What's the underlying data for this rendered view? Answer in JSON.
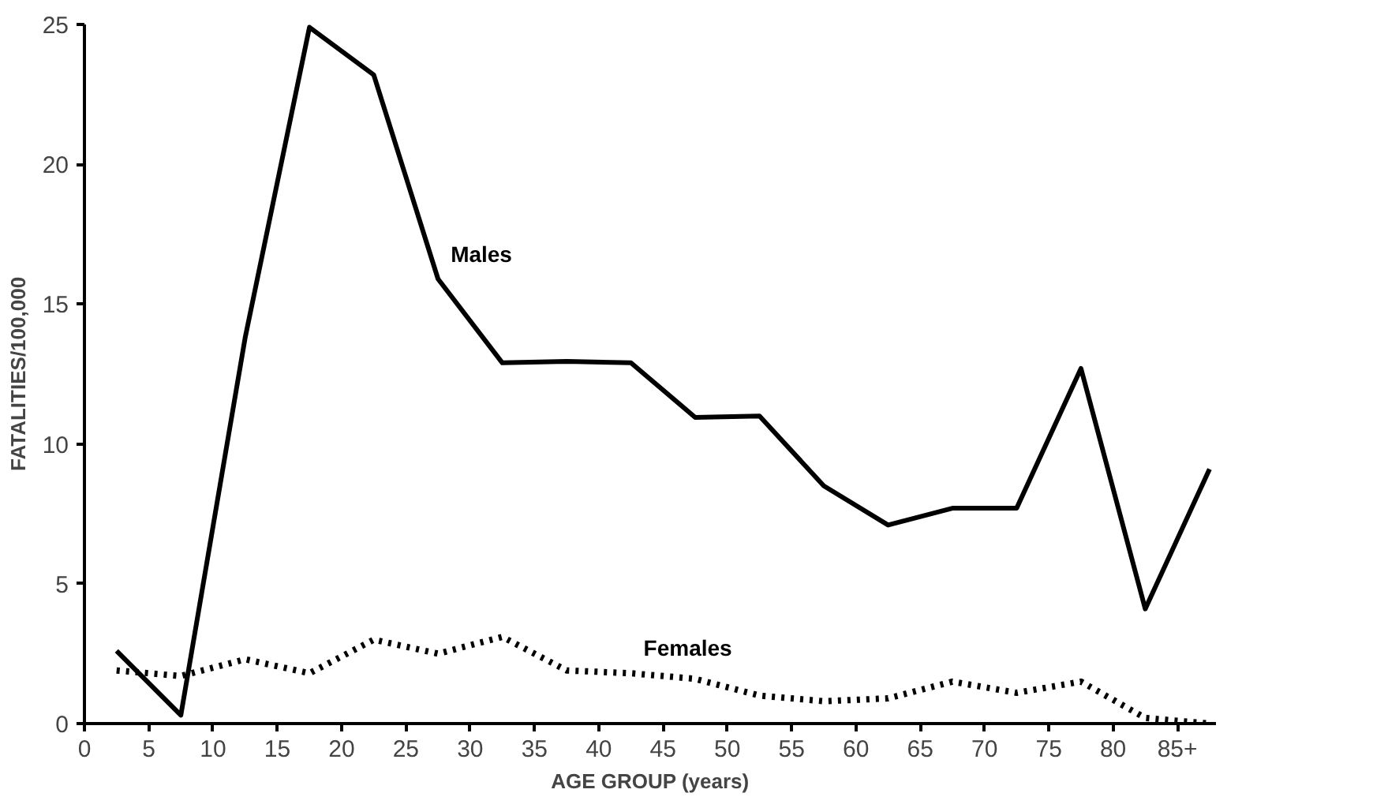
{
  "chart_data": {
    "type": "line",
    "xlabel": "AGE GROUP (years)",
    "ylabel": "FATALITIES/100,000",
    "x": [
      2.5,
      7.5,
      12.5,
      17.5,
      22.5,
      27.5,
      32.5,
      37.5,
      42.5,
      47.5,
      52.5,
      57.5,
      62.5,
      67.5,
      72.5,
      77.5,
      82.5,
      87.5
    ],
    "series": [
      {
        "name": "Males",
        "color": "#000000",
        "line_style": "solid",
        "values": [
          2.6,
          0.3,
          13.8,
          24.9,
          23.2,
          15.9,
          12.9,
          12.95,
          12.9,
          10.95,
          11.0,
          8.5,
          7.1,
          7.7,
          7.7,
          12.7,
          4.1,
          9.1
        ]
      },
      {
        "name": "Females",
        "color": "#000000",
        "line_style": "dotted",
        "values": [
          1.9,
          1.7,
          2.3,
          1.8,
          3.0,
          2.5,
          3.1,
          1.9,
          1.8,
          1.6,
          1.0,
          0.8,
          0.9,
          1.5,
          1.1,
          1.5,
          0.2,
          0.0
        ]
      }
    ],
    "xlim": [
      0,
      88
    ],
    "ylim": [
      0,
      25
    ],
    "xticks": [
      0,
      5,
      10,
      15,
      20,
      25,
      30,
      35,
      40,
      45,
      50,
      55,
      60,
      65,
      70,
      75,
      80,
      {
        "value": 85,
        "label": "85+"
      }
    ],
    "yticks": [
      0,
      5,
      10,
      15,
      20,
      25
    ],
    "grid": false,
    "legend": false,
    "marker": "none"
  }
}
